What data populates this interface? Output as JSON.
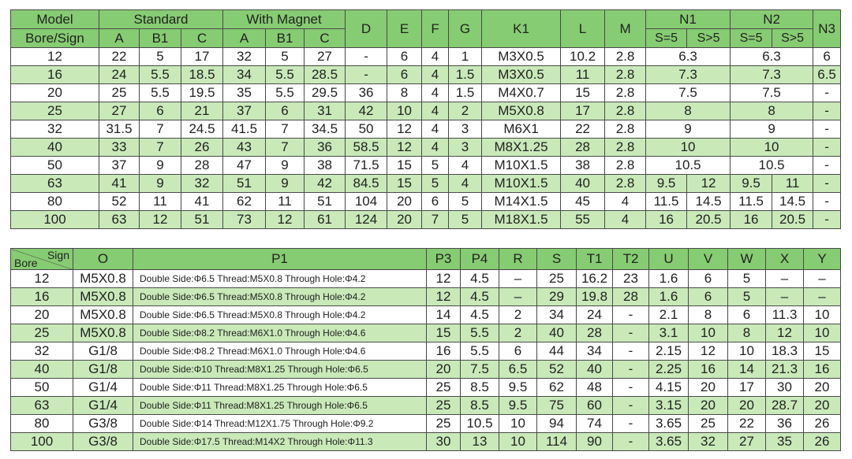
{
  "table1": {
    "header": {
      "model": "Model",
      "bore_sign": "Bore/Sign",
      "standard": "Standard",
      "with_magnet": "With Magnet",
      "standard_cols": [
        "A",
        "B1",
        "C"
      ],
      "magnet_cols": [
        "A",
        "B1",
        "C"
      ],
      "d": "D",
      "e": "E",
      "f": "F",
      "g": "G",
      "k1": "K1",
      "l": "L",
      "m": "M",
      "n1": "N1",
      "n2": "N2",
      "n3": "N3",
      "n1_cols": [
        "S=5",
        "S>5"
      ],
      "n2_cols": [
        "S=5",
        "S>5"
      ]
    },
    "rows": [
      {
        "bore": "12",
        "values": [
          "22",
          "5",
          "17",
          "32",
          "5",
          "27",
          "-",
          "6",
          "4",
          "1",
          "M3X0.5",
          "10.2",
          "2.8"
        ],
        "n1": [
          "6.3"
        ],
        "n2": [
          "6.3"
        ],
        "n3": "6"
      },
      {
        "bore": "16",
        "values": [
          "24",
          "5.5",
          "18.5",
          "34",
          "5.5",
          "28.5",
          "-",
          "6",
          "4",
          "1.5",
          "M3X0.5",
          "11",
          "2.8"
        ],
        "n1": [
          "7.3"
        ],
        "n2": [
          "7.3"
        ],
        "n3": "6.5"
      },
      {
        "bore": "20",
        "values": [
          "25",
          "5.5",
          "19.5",
          "35",
          "5.5",
          "29.5",
          "36",
          "8",
          "4",
          "1.5",
          "M4X0.7",
          "15",
          "2.8"
        ],
        "n1": [
          "7.5"
        ],
        "n2": [
          "7.5"
        ],
        "n3": "-"
      },
      {
        "bore": "25",
        "values": [
          "27",
          "6",
          "21",
          "37",
          "6",
          "31",
          "42",
          "10",
          "4",
          "2",
          "M5X0.8",
          "17",
          "2.8"
        ],
        "n1": [
          "8"
        ],
        "n2": [
          "8"
        ],
        "n3": "-"
      },
      {
        "bore": "32",
        "values": [
          "31.5",
          "7",
          "24.5",
          "41.5",
          "7",
          "34.5",
          "50",
          "12",
          "4",
          "3",
          "M6X1",
          "22",
          "2.8"
        ],
        "n1": [
          "9"
        ],
        "n2": [
          "9"
        ],
        "n3": "-"
      },
      {
        "bore": "40",
        "values": [
          "33",
          "7",
          "26",
          "43",
          "7",
          "36",
          "58.5",
          "12",
          "4",
          "3",
          "M8X1.25",
          "28",
          "2.8"
        ],
        "n1": [
          "10"
        ],
        "n2": [
          "10"
        ],
        "n3": "-"
      },
      {
        "bore": "50",
        "values": [
          "37",
          "9",
          "28",
          "47",
          "9",
          "38",
          "71.5",
          "15",
          "5",
          "4",
          "M10X1.5",
          "38",
          "2.8"
        ],
        "n1": [
          "10.5"
        ],
        "n2": [
          "10.5"
        ],
        "n3": "-"
      },
      {
        "bore": "63",
        "values": [
          "41",
          "9",
          "32",
          "51",
          "9",
          "42",
          "84.5",
          "15",
          "5",
          "4",
          "M10X1.5",
          "40",
          "2.8"
        ],
        "n1": [
          "9.5",
          "12"
        ],
        "n2": [
          "9.5",
          "11"
        ],
        "n3": "-"
      },
      {
        "bore": "80",
        "values": [
          "52",
          "11",
          "41",
          "62",
          "11",
          "51",
          "104",
          "20",
          "6",
          "5",
          "M14X1.5",
          "45",
          "4"
        ],
        "n1": [
          "11.5",
          "14.5"
        ],
        "n2": [
          "11.5",
          "14.5"
        ],
        "n3": "-"
      },
      {
        "bore": "100",
        "values": [
          "63",
          "12",
          "51",
          "73",
          "12",
          "61",
          "124",
          "20",
          "7",
          "5",
          "M18X1.5",
          "55",
          "4"
        ],
        "n1": [
          "16",
          "20.5"
        ],
        "n2": [
          "16",
          "20.5"
        ],
        "n3": "-"
      }
    ]
  },
  "table2": {
    "header": {
      "sign": "Sign",
      "bore": "Bore",
      "cols": [
        "O",
        "P1",
        "P3",
        "P4",
        "R",
        "S",
        "T1",
        "T2",
        "U",
        "V",
        "W",
        "X",
        "Y"
      ]
    },
    "rows": [
      [
        "12",
        "M5X0.8",
        "Double Side:Φ6.5  Thread:M5X0.8 Through Hole:Φ4.2",
        "12",
        "4.5",
        "–",
        "25",
        "16.2",
        "23",
        "1.6",
        "6",
        "5",
        "–",
        "–"
      ],
      [
        "16",
        "M5X0.8",
        "Double Side:Φ6.5  Thread:M5X0.8 Through Hole:Φ4.2",
        "12",
        "4.5",
        "–",
        "29",
        "19.8",
        "28",
        "1.6",
        "6",
        "5",
        "–",
        "–"
      ],
      [
        "20",
        "M5X0.8",
        "Double Side:Φ6.5  Thread:M5X0.8 Through Hole:Φ4.2",
        "14",
        "4.5",
        "2",
        "34",
        "24",
        "-",
        "2.1",
        "8",
        "6",
        "11.3",
        "10"
      ],
      [
        "25",
        "M5X0.8",
        "Double Side:Φ8.2  Thread:M6X1.0 Through Hole:Φ4.6",
        "15",
        "5.5",
        "2",
        "40",
        "28",
        "-",
        "3.1",
        "10",
        "8",
        "12",
        "10"
      ],
      [
        "32",
        "G1/8",
        "Double Side:Φ8.2  Thread:M6X1.0  Through Hole:Φ4.6",
        "16",
        "5.5",
        "6",
        "44",
        "34",
        "-",
        "2.15",
        "12",
        "10",
        "18.3",
        "15"
      ],
      [
        "40",
        "G1/8",
        "Double Side:Φ10  Thread:M8X1.25 Through Hole:Φ6.5",
        "20",
        "7.5",
        "6.5",
        "52",
        "40",
        "-",
        "2.25",
        "16",
        "14",
        "21.3",
        "16"
      ],
      [
        "50",
        "G1/4",
        "Double Side:Φ11  Thread:M8X1.25 Through Hole:Φ6.5",
        "25",
        "8.5",
        "9.5",
        "62",
        "48",
        "-",
        "4.15",
        "20",
        "17",
        "30",
        "20"
      ],
      [
        "63",
        "G1/4",
        "Double Side:Φ11  Thread:M8X1.25 Through Hole:Φ6.5",
        "25",
        "8.5",
        "9.5",
        "75",
        "60",
        "-",
        "3.15",
        "20",
        "20",
        "28.7",
        "20"
      ],
      [
        "80",
        "G3/8",
        "Double Side:Φ14  Thread:M12X1.75 Through Hole:Φ9.2",
        "25",
        "10.5",
        "10",
        "94",
        "74",
        "-",
        "3.65",
        "25",
        "22",
        "36",
        "26"
      ],
      [
        "100",
        "G3/8",
        "Double Side:Φ17.5  Thread:M14X2  Through Hole:Φ11.3",
        "30",
        "13",
        "10",
        "114",
        "90",
        "-",
        "3.65",
        "32",
        "27",
        "35",
        "26"
      ]
    ]
  }
}
